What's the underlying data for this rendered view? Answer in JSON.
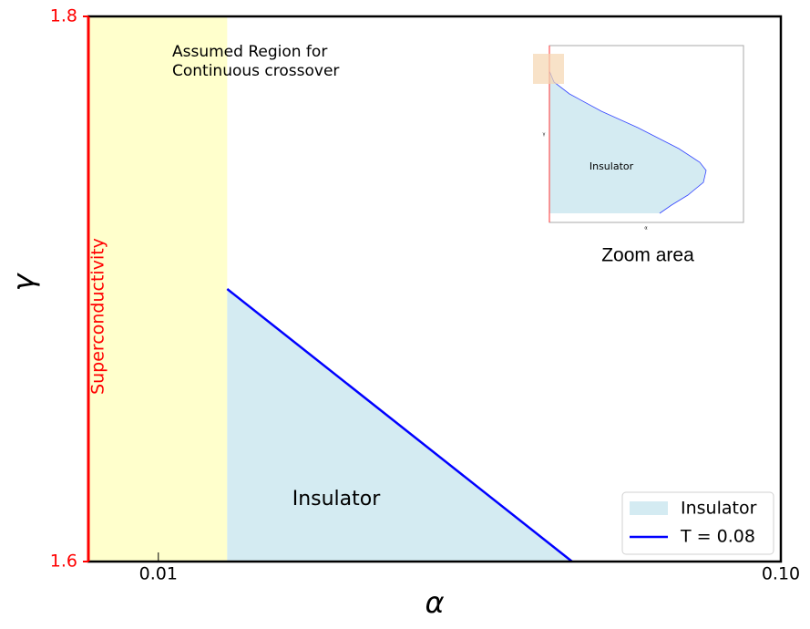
{
  "chart_data": {
    "type": "line",
    "xlabel": "α",
    "ylabel": "γ",
    "xscale": "log",
    "xlim": [
      0.00772,
      0.1
    ],
    "ylim": [
      1.6,
      1.8
    ],
    "xticks": [
      0.01,
      {
        "value": 0.1,
        "label": "0.10"
      }
    ],
    "yticks": [
      1.8,
      1.6
    ],
    "ytick_color": "#ff0000",
    "band": {
      "x": [
        0.00772,
        0.0129
      ],
      "color": "#ffffcc"
    },
    "fill": {
      "name": "Insulator",
      "color": "#d4ebf2"
    },
    "series": [
      {
        "name": "T = 0.08",
        "color": "#0000ff",
        "x": [
          0.0129,
          0.0462
        ],
        "values": [
          1.7,
          1.6
        ]
      }
    ],
    "region_label": "Insulator",
    "annotation": [
      "Assumed Region for",
      "Continuous crossover"
    ],
    "left_label": "Superconductivity",
    "left_color": "#ff0000",
    "legend": "lower right",
    "inset": {
      "label": "Insulator",
      "xlabel": "α",
      "ylabel": "γ",
      "caption": "Zoom area"
    }
  }
}
